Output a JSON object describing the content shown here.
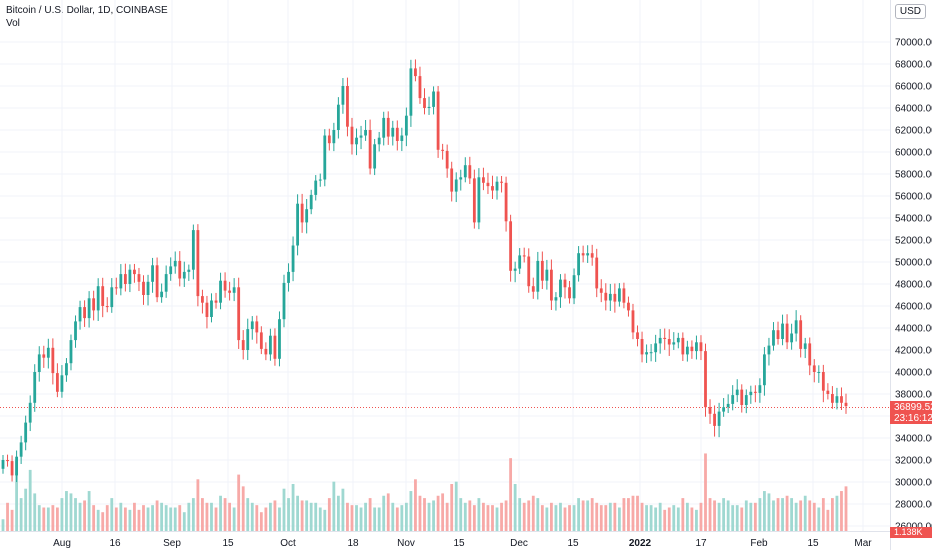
{
  "legend": {
    "symbol_line": "Bitcoin / U.S. Dollar, 1D, COINBASE",
    "volume_line": "Vol"
  },
  "currency": "USD",
  "last_price": {
    "price": "36899.52",
    "countdown": "23:16:12"
  },
  "last_volume": "1.138K",
  "price_axis_labels": [
    "70000.00",
    "68000.00",
    "66000.00",
    "64000.00",
    "62000.00",
    "60000.00",
    "58000.00",
    "56000.00",
    "54000.00",
    "52000.00",
    "50000.00",
    "48000.00",
    "46000.00",
    "44000.00",
    "42000.00",
    "40000.00",
    "38000.00",
    "36000.00",
    "34000.00",
    "32000.00",
    "30000.00",
    "28000.00",
    "26000.00"
  ],
  "date_labels": [
    {
      "text": "Aug",
      "bold": false
    },
    {
      "text": "16",
      "bold": false
    },
    {
      "text": "Sep",
      "bold": false
    },
    {
      "text": "15",
      "bold": false
    },
    {
      "text": "Oct",
      "bold": false
    },
    {
      "text": "18",
      "bold": false
    },
    {
      "text": "Nov",
      "bold": false
    },
    {
      "text": "15",
      "bold": false
    },
    {
      "text": "Dec",
      "bold": false
    },
    {
      "text": "15",
      "bold": false
    },
    {
      "text": "2022",
      "bold": true
    },
    {
      "text": "17",
      "bold": false
    },
    {
      "text": "Feb",
      "bold": false
    },
    {
      "text": "15",
      "bold": false
    },
    {
      "text": "Mar",
      "bold": false
    }
  ],
  "colors": {
    "up": "#26a69a",
    "down": "#ef5350",
    "up_volume": "#9fd8d1",
    "down_volume": "#f7a9a7",
    "grid": "#f0f3fa"
  },
  "chart_data": {
    "type": "candlestick",
    "symbol": "Bitcoin / U.S. Dollar",
    "interval": "1D",
    "exchange": "COINBASE",
    "y_axis_unit": "USD",
    "ylim": [
      25800,
      72300
    ],
    "x_range": [
      "2021-07-20",
      "2022-03-01"
    ],
    "last_close": 36899.52,
    "description": "Daily candles, approx. values read from chart; close levels listed in order",
    "closes": [
      32000,
      31900,
      30600,
      32300,
      33600,
      35400,
      37200,
      40000,
      41600,
      41300,
      42200,
      39900,
      38200,
      39700,
      40800,
      42900,
      44600,
      45900,
      44900,
      46700,
      45600,
      47800,
      46000,
      45900,
      47700,
      47600,
      48900,
      48000,
      49300,
      48900,
      48200,
      47000,
      48200,
      49700,
      46800,
      47300,
      48900,
      49600,
      50100,
      48500,
      49100,
      49300,
      52900,
      46900,
      46300,
      45000,
      46500,
      46300,
      48300,
      47400,
      47200,
      47700,
      42900,
      42000,
      43900,
      44600,
      43600,
      42100,
      41600,
      43300,
      41200,
      44800,
      48100,
      49100,
      51500,
      55300,
      53600,
      54800,
      56100,
      57400,
      57500,
      61500,
      60800,
      62000,
      64300,
      66000,
      62300,
      60700,
      61300,
      61500,
      62000,
      58500,
      60700,
      61300,
      63100,
      61400,
      62200,
      61000,
      61500,
      63300,
      67600,
      66900,
      64900,
      64000,
      64100,
      65500,
      60200,
      60100,
      58500,
      56400,
      57500,
      57700,
      58800,
      57600,
      53600,
      57700,
      57200,
      56900,
      56500,
      57300,
      57200,
      53700,
      49200,
      49400,
      50600,
      50500,
      47800,
      47300,
      50100,
      48300,
      49300,
      46500,
      46800,
      48400,
      47700,
      46700,
      48800,
      50800,
      50600,
      50800,
      50400,
      47600,
      47200,
      46500,
      47100,
      46400,
      47600,
      46300,
      45600,
      43600,
      43000,
      41600,
      41800,
      41800,
      42600,
      43100,
      43000,
      42500,
      42700,
      43100,
      41600,
      42300,
      41900,
      42700,
      41900,
      36800,
      36200,
      35100,
      36400,
      36800,
      37100,
      37900,
      38400,
      37000,
      37900,
      38200,
      38100,
      38800,
      41600,
      42400,
      43800,
      43000,
      44400,
      42700,
      43500,
      44700,
      42100,
      42600,
      40600,
      40000,
      40000,
      38300,
      38000,
      37200,
      37800,
      37200,
      36900
    ],
    "volumes_k": [
      5,
      12,
      9,
      30,
      14,
      18,
      26,
      16,
      11,
      10,
      10,
      11,
      10,
      14,
      17,
      16,
      14,
      12,
      13,
      17,
      11,
      9,
      8,
      11,
      14,
      10,
      12,
      10,
      9,
      12,
      9,
      11,
      10,
      11,
      13,
      12,
      11,
      10,
      10,
      11,
      8,
      12,
      14,
      22,
      14,
      12,
      12,
      10,
      15,
      14,
      12,
      10,
      24,
      19,
      14,
      12,
      11,
      8,
      10,
      12,
      13,
      10,
      18,
      14,
      20,
      15,
      13,
      13,
      12,
      12,
      10,
      9,
      14,
      21,
      15,
      18,
      12,
      11,
      11,
      10,
      12,
      14,
      10,
      10,
      15,
      16,
      12,
      10,
      11,
      12,
      17,
      22,
      15,
      14,
      12,
      13,
      15,
      16,
      12,
      20,
      21,
      14,
      12,
      13,
      11,
      14,
      12,
      11,
      11,
      10,
      12,
      13,
      31,
      20,
      14,
      12,
      13,
      15,
      14,
      11,
      10,
      12,
      11,
      12,
      10,
      11,
      11,
      14,
      13,
      13,
      14,
      12,
      11,
      11,
      12,
      12,
      10,
      14,
      14,
      15,
      15,
      12,
      11,
      11,
      10,
      12,
      9,
      10,
      11,
      10,
      14,
      12,
      10,
      9,
      12,
      33,
      14,
      13,
      12,
      14,
      13,
      11,
      11,
      10,
      13,
      12,
      12,
      14,
      17,
      16,
      13,
      14,
      14,
      15,
      14,
      12,
      13,
      15,
      13,
      12,
      10,
      14,
      9,
      14,
      15,
      17,
      19,
      10,
      1
    ]
  }
}
